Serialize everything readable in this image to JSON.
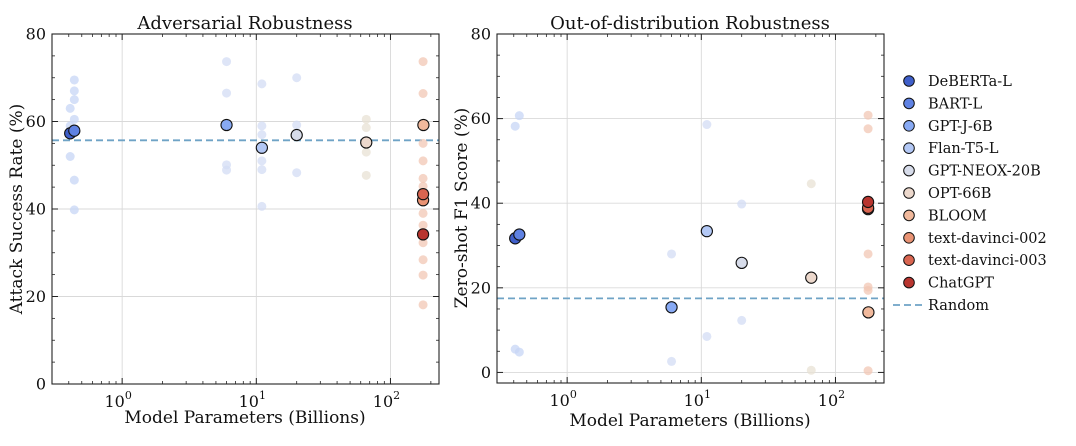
{
  "chart_data": [
    {
      "type": "scatter",
      "title": "Adversarial Robustness",
      "xlabel": "Model Parameters (Billions)",
      "ylabel": "Attack Success Rate (%)",
      "xscale": "log",
      "xlim": [
        0.3,
        230
      ],
      "ylim": [
        0,
        80
      ],
      "yticks": [
        0,
        20,
        40,
        60,
        80
      ],
      "xticks": [
        {
          "value": 1,
          "base": "10",
          "exp": "0"
        },
        {
          "value": 10,
          "base": "10",
          "exp": "1"
        },
        {
          "value": 100,
          "base": "10",
          "exp": "2"
        }
      ],
      "grid": true,
      "reference_line": {
        "name": "Random",
        "y": 55.7
      },
      "series": [
        {
          "name": "DeBERTa-L",
          "x": 0.41,
          "y": 57.3
        },
        {
          "name": "BART-L",
          "x": 0.44,
          "y": 57.9
        },
        {
          "name": "GPT-J-6B",
          "x": 6,
          "y": 59.2
        },
        {
          "name": "Flan-T5-L",
          "x": 11,
          "y": 54.0
        },
        {
          "name": "GPT-NEOX-20B",
          "x": 20,
          "y": 56.9
        },
        {
          "name": "OPT-66B",
          "x": 66,
          "y": 55.2
        },
        {
          "name": "BLOOM",
          "x": 176,
          "y": 59.2
        },
        {
          "name": "text-davinci-002",
          "x": 175,
          "y": 42.0
        },
        {
          "name": "text-davinci-003",
          "x": 175,
          "y": 43.4
        },
        {
          "name": "ChatGPT",
          "x": 175,
          "y": 34.2
        }
      ],
      "faded_points": [
        {
          "x": 0.41,
          "y": 63
        },
        {
          "x": 0.41,
          "y": 59
        },
        {
          "x": 0.41,
          "y": 52
        },
        {
          "x": 0.44,
          "y": 69.5
        },
        {
          "x": 0.44,
          "y": 67
        },
        {
          "x": 0.44,
          "y": 65
        },
        {
          "x": 0.44,
          "y": 60.5
        },
        {
          "x": 0.44,
          "y": 46.6
        },
        {
          "x": 0.44,
          "y": 39.8
        },
        {
          "x": 6,
          "y": 73.7
        },
        {
          "x": 6,
          "y": 66.5
        },
        {
          "x": 6,
          "y": 50.1
        },
        {
          "x": 6,
          "y": 48.9
        },
        {
          "x": 11,
          "y": 68.6
        },
        {
          "x": 11,
          "y": 59
        },
        {
          "x": 11,
          "y": 57
        },
        {
          "x": 11,
          "y": 51
        },
        {
          "x": 11,
          "y": 49
        },
        {
          "x": 11,
          "y": 40.6
        },
        {
          "x": 20,
          "y": 70
        },
        {
          "x": 20,
          "y": 59.2
        },
        {
          "x": 20,
          "y": 48.3
        },
        {
          "x": 66,
          "y": 60.5
        },
        {
          "x": 66,
          "y": 58.6
        },
        {
          "x": 66,
          "y": 53
        },
        {
          "x": 66,
          "y": 47.7
        },
        {
          "x": 175,
          "y": 73.7
        },
        {
          "x": 175,
          "y": 66.4
        },
        {
          "x": 175,
          "y": 55
        },
        {
          "x": 175,
          "y": 51
        },
        {
          "x": 175,
          "y": 47
        },
        {
          "x": 175,
          "y": 45.2
        },
        {
          "x": 175,
          "y": 41.8
        },
        {
          "x": 175,
          "y": 39
        },
        {
          "x": 175,
          "y": 36.3
        },
        {
          "x": 175,
          "y": 32.3
        },
        {
          "x": 175,
          "y": 28.4
        },
        {
          "x": 175,
          "y": 24.9
        },
        {
          "x": 175,
          "y": 18.1
        }
      ]
    },
    {
      "type": "scatter",
      "title": "Out-of-distribution Robustness",
      "xlabel": "Model Parameters (Billions)",
      "ylabel": "Zero-shot F1 Score (%)",
      "xscale": "log",
      "xlim": [
        0.3,
        230
      ],
      "ylim": [
        -2.5,
        80
      ],
      "yticks": [
        0,
        20,
        40,
        60,
        80
      ],
      "xticks": [
        {
          "value": 1,
          "base": "10",
          "exp": "0"
        },
        {
          "value": 10,
          "base": "10",
          "exp": "1"
        },
        {
          "value": 100,
          "base": "10",
          "exp": "2"
        }
      ],
      "grid": true,
      "reference_line": {
        "name": "Random",
        "y": 17.5
      },
      "series": [
        {
          "name": "DeBERTa-L",
          "x": 0.41,
          "y": 31.7
        },
        {
          "name": "BART-L",
          "x": 0.44,
          "y": 32.6
        },
        {
          "name": "GPT-J-6B",
          "x": 6,
          "y": 15.4
        },
        {
          "name": "Flan-T5-L",
          "x": 11,
          "y": 33.4
        },
        {
          "name": "GPT-NEOX-20B",
          "x": 20,
          "y": 25.9
        },
        {
          "name": "OPT-66B",
          "x": 66,
          "y": 22.4
        },
        {
          "name": "BLOOM",
          "x": 176,
          "y": 14.2
        },
        {
          "name": "text-davinci-002",
          "x": 175,
          "y": 38.6
        },
        {
          "name": "text-davinci-003",
          "x": 175,
          "y": 38.9
        },
        {
          "name": "ChatGPT",
          "x": 175,
          "y": 40.3
        }
      ],
      "faded_points": [
        {
          "x": 0.41,
          "y": 58.2
        },
        {
          "x": 0.44,
          "y": 60.7
        },
        {
          "x": 0.41,
          "y": 5.5
        },
        {
          "x": 0.44,
          "y": 4.8
        },
        {
          "x": 6,
          "y": 28.0
        },
        {
          "x": 6,
          "y": 2.6
        },
        {
          "x": 11,
          "y": 58.6
        },
        {
          "x": 11,
          "y": 8.5
        },
        {
          "x": 20,
          "y": 39.8
        },
        {
          "x": 20,
          "y": 12.3
        },
        {
          "x": 66,
          "y": 44.6
        },
        {
          "x": 66,
          "y": 0.5
        },
        {
          "x": 175,
          "y": 60.8
        },
        {
          "x": 175,
          "y": 57.6
        },
        {
          "x": 175,
          "y": 28.0
        },
        {
          "x": 175,
          "y": 20.2
        },
        {
          "x": 175,
          "y": 19.4
        },
        {
          "x": 175,
          "y": 0.4
        }
      ]
    }
  ],
  "legend": {
    "placement": "right",
    "entries": [
      {
        "label": "DeBERTa-L",
        "color": "#3f5fca"
      },
      {
        "label": "BART-L",
        "color": "#5f82e3"
      },
      {
        "label": "GPT-J-6B",
        "color": "#88aaf4"
      },
      {
        "label": "Flan-T5-L",
        "color": "#b3c8f5"
      },
      {
        "label": "GPT-NEOX-20B",
        "color": "#d7dcea"
      },
      {
        "label": "OPT-66B",
        "color": "#ecd8cc"
      },
      {
        "label": "BLOOM",
        "color": "#f1b99c"
      },
      {
        "label": "text-davinci-002",
        "color": "#e99374"
      },
      {
        "label": "text-davinci-003",
        "color": "#d96550"
      },
      {
        "label": "ChatGPT",
        "color": "#b8352f"
      }
    ],
    "random": {
      "label": "Random",
      "color": "#6fa3c6"
    }
  }
}
